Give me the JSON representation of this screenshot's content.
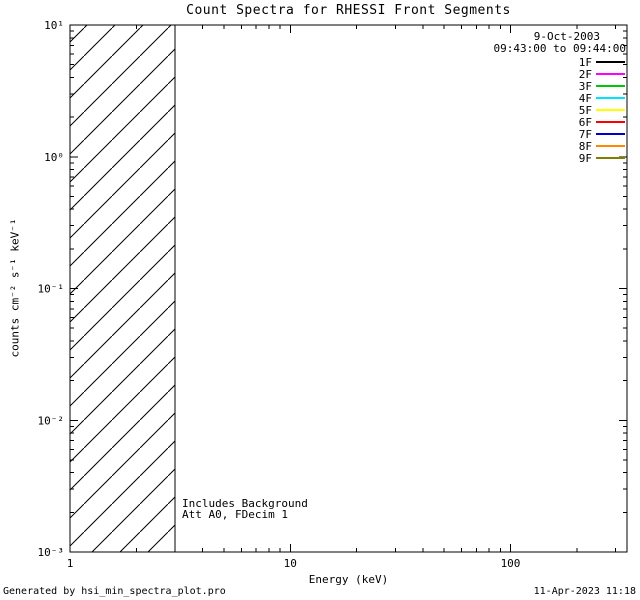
{
  "chart_data": {
    "type": "line",
    "title": "Count Spectra for RHESSI Front Segments",
    "xlabel": "Energy (keV)",
    "ylabel": "counts cm⁻² s⁻¹ keV⁻¹",
    "xscale": "log",
    "yscale": "log",
    "xlim": [
      1,
      338
    ],
    "ylim": [
      0.001,
      10
    ],
    "grid": "off",
    "x_major_ticks": [
      1,
      10,
      100
    ],
    "x_tick_labels": [
      "1",
      "10",
      "100"
    ],
    "y_major_ticks": [
      10,
      1,
      0.1,
      0.01,
      0.001
    ],
    "y_tick_labels": [
      "10¹",
      "10⁰",
      "10⁻¹",
      "10⁻²",
      "10⁻³"
    ],
    "background_region": {
      "style": "diagonal-hatch",
      "x_start": 1,
      "x_end": 3,
      "spans_full_y_range": true
    },
    "series": [],
    "series_note": "No spectra curves are drawn in the plot area; only the hatched low-energy band and the legend are shown.",
    "legend": {
      "position": "top-right",
      "date": "9-Oct-2003",
      "time_range": "09:43:00 to 09:44:00",
      "entries": [
        {
          "label": "1F",
          "color": "#000000"
        },
        {
          "label": "2F",
          "color": "#ff00ff"
        },
        {
          "label": "3F",
          "color": "#00c800"
        },
        {
          "label": "4F",
          "color": "#00e5ff"
        },
        {
          "label": "5F",
          "color": "#ffff00"
        },
        {
          "label": "6F",
          "color": "#ff0000"
        },
        {
          "label": "7F",
          "color": "#0000cc"
        },
        {
          "label": "8F",
          "color": "#ff8800"
        },
        {
          "label": "9F",
          "color": "#808000"
        }
      ]
    },
    "annotations": [
      "Includes Background",
      "Att A0, FDecim 1"
    ]
  },
  "footer": {
    "left": "Generated by hsi_min_spectra_plot.pro",
    "right": "11-Apr-2023 11:18"
  }
}
